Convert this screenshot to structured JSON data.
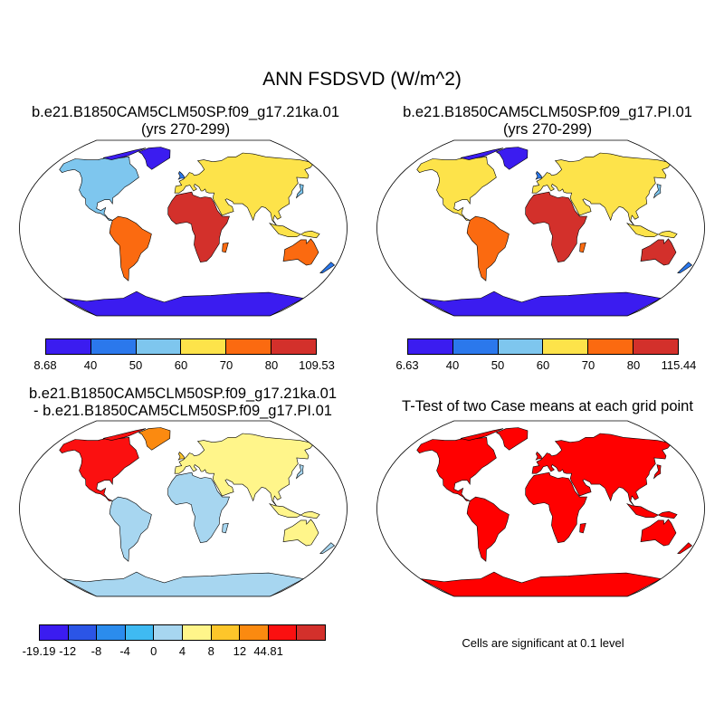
{
  "main_title": "ANN FSDSVD (W/m^2)",
  "panels": {
    "case1": {
      "title_line1": "b.e21.B1850CAM5CLM50SP.f09_g17.21ka.01",
      "title_line2": "(yrs 270-299)"
    },
    "case2": {
      "title_line1": "b.e21.B1850CAM5CLM50SP.f09_g17.PI.01",
      "title_line2": "(yrs 270-299)"
    },
    "diff": {
      "title_line1": "b.e21.B1850CAM5CLM50SP.f09_g17.21ka.01",
      "title_line2": "- b.e21.B1850CAM5CLM50SP.f09_g17.PI.01"
    },
    "ttest": {
      "title": "T-Test of two Case means at each grid point",
      "note": "Cells are significant at 0.1 level"
    }
  },
  "colorbars": {
    "case1": {
      "labels": [
        "8.68",
        "40",
        "50",
        "60",
        "70",
        "80",
        "109.53"
      ],
      "colors": [
        "#3b1cf0",
        "#2b78ec",
        "#7ec6ee",
        "#fde34a",
        "#fb6a10",
        "#d3302b"
      ]
    },
    "case2": {
      "labels": [
        "6.63",
        "40",
        "50",
        "60",
        "70",
        "80",
        "115.44"
      ],
      "colors": [
        "#3b1cf0",
        "#2b78ec",
        "#7ec6ee",
        "#fde34a",
        "#fb6a10",
        "#d3302b"
      ]
    },
    "diff": {
      "labels": [
        "-19.19",
        "-12",
        "-8",
        "-4",
        "0",
        "4",
        "8",
        "12",
        "44.81"
      ],
      "colors": [
        "#3b1cf0",
        "#2b55e6",
        "#2b8ced",
        "#3fbaf2",
        "#a7d6f0",
        "#fff58a",
        "#fdc62a",
        "#fb8a10",
        "#fb1010",
        "#d3302b"
      ]
    }
  },
  "ttest_color": "#ff0000",
  "map_projection": "Robinson",
  "ocean_color": "#ffffff"
}
